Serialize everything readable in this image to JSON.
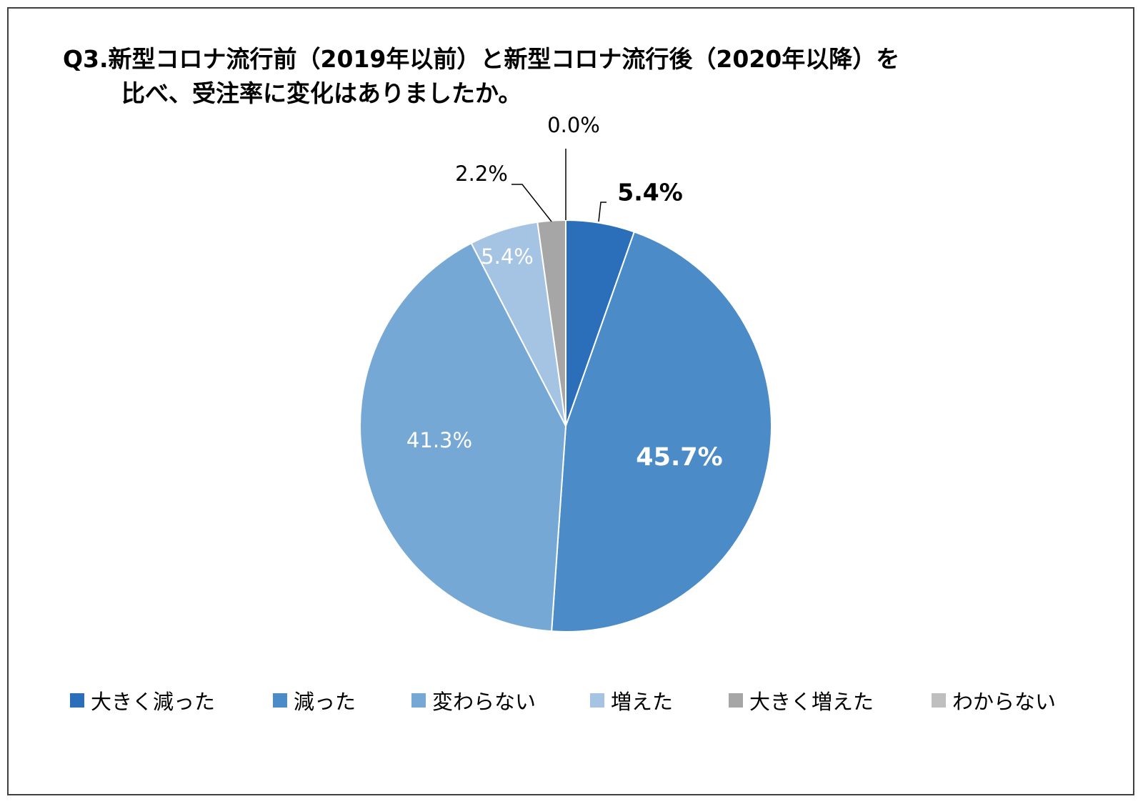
{
  "chart_data": {
    "type": "pie",
    "title": "Q3.新型コロナ流行前（2019年以前）と新型コロナ流行後（2020年以降）を",
    "title_line2": "比べ、受注率に変化はありましたか。",
    "legend_placement": "bottom",
    "categories": [
      "大きく減った",
      "減った",
      "変わらない",
      "増えた",
      "大きく増えた",
      "わからない"
    ],
    "values": [
      5.4,
      45.7,
      41.3,
      5.4,
      2.2,
      0.0
    ],
    "labels": [
      "5.4%",
      "45.7%",
      "41.3%",
      "5.4%",
      "2.2%",
      "0.0%"
    ],
    "colors": [
      "#2B6FBB",
      "#4A8BC8",
      "#76A8D6",
      "#A5C4E4",
      "#A6A6A6",
      "#BFBFBF"
    ]
  }
}
